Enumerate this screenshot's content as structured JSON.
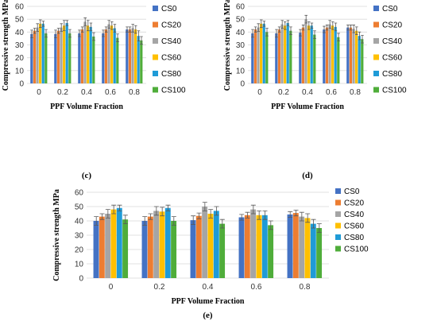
{
  "series_colors": [
    "#4472c4",
    "#ed7d31",
    "#a5a5a5",
    "#ffc000",
    "#1f9bd7",
    "#4fad3a"
  ],
  "chart_data": [
    {
      "type": "bar",
      "panel_label": "(c)",
      "categories": [
        "0",
        "0.2",
        "0.4",
        "0.6",
        "0.8"
      ],
      "xlabel": "PPF Volume Fraction",
      "ylabel": "Compressive strength MPa",
      "ylim": [
        0,
        60
      ],
      "yticks": [
        "0",
        "10",
        "20",
        "30",
        "40",
        "50",
        "60"
      ],
      "grid": true,
      "legend_position": "right",
      "series": [
        {
          "name": "CS0",
          "values": [
            38.5,
            38.5,
            39,
            39,
            42
          ],
          "errors": [
            3,
            3,
            2.5,
            2.5,
            2
          ]
        },
        {
          "name": "CS20",
          "values": [
            41,
            41,
            42,
            42,
            42
          ],
          "errors": [
            2,
            2,
            2,
            2,
            2
          ]
        },
        {
          "name": "CS40",
          "values": [
            43.5,
            43.5,
            48,
            46,
            43
          ],
          "errors": [
            3,
            3,
            3,
            3,
            3
          ]
        },
        {
          "name": "CS60",
          "values": [
            46.5,
            45,
            45,
            45,
            42
          ],
          "errors": [
            3,
            4,
            4,
            3,
            3
          ]
        },
        {
          "name": "CS80",
          "values": [
            46.5,
            47,
            44,
            43,
            37
          ],
          "errors": [
            2,
            2,
            3,
            3,
            4
          ]
        },
        {
          "name": "CS100",
          "values": [
            39,
            39,
            36.5,
            35.5,
            33.5
          ],
          "errors": [
            3,
            3,
            3,
            3,
            3
          ]
        }
      ]
    },
    {
      "type": "bar",
      "panel_label": "(d)",
      "categories": [
        "0",
        "0.2",
        "0.4",
        "0.6",
        "0.8"
      ],
      "xlabel": "PPF Volume Fraction",
      "ylabel": "Compressive strength MPa",
      "ylim": [
        0,
        60
      ],
      "yticks": [
        "0",
        "10",
        "20",
        "30",
        "40",
        "50",
        "60"
      ],
      "grid": true,
      "legend_position": "right",
      "series": [
        {
          "name": "CS0",
          "values": [
            39,
            39,
            39.5,
            42,
            43.5
          ],
          "errors": [
            3,
            3,
            2.5,
            2.5,
            2
          ]
        },
        {
          "name": "CS20",
          "values": [
            42,
            42,
            43.5,
            43.5,
            43.5
          ],
          "errors": [
            2,
            2,
            2,
            2,
            2
          ]
        },
        {
          "name": "CS40",
          "values": [
            43.5,
            46,
            50,
            46,
            42.5
          ],
          "errors": [
            3,
            3,
            3,
            3,
            3
          ]
        },
        {
          "name": "CS60",
          "values": [
            46.5,
            45,
            45,
            45,
            41
          ],
          "errors": [
            3,
            3,
            3,
            3,
            3
          ]
        },
        {
          "name": "CS80",
          "values": [
            46.5,
            47,
            45,
            44,
            37
          ],
          "errors": [
            2,
            2,
            2,
            3,
            3
          ]
        },
        {
          "name": "CS100",
          "values": [
            40,
            41,
            38,
            36,
            34.5
          ],
          "errors": [
            3,
            3,
            3,
            3,
            3
          ]
        }
      ]
    },
    {
      "type": "bar",
      "panel_label": "(e)",
      "categories": [
        "0",
        "0.2",
        "0.4",
        "0.6",
        "0.8"
      ],
      "xlabel": "PPF Volume Fraction",
      "ylabel": "Compressive strength MPa",
      "ylim": [
        0,
        60
      ],
      "yticks": [
        "0",
        "10",
        "20",
        "30",
        "40",
        "50",
        "60"
      ],
      "grid": true,
      "legend_position": "right",
      "series": [
        {
          "name": "CS0",
          "values": [
            40,
            40,
            40.5,
            42.5,
            44.5
          ],
          "errors": [
            3,
            3,
            3,
            2,
            2
          ]
        },
        {
          "name": "CS20",
          "values": [
            43,
            43,
            43.5,
            44,
            45.5
          ],
          "errors": [
            2,
            2,
            2,
            2,
            2
          ]
        },
        {
          "name": "CS40",
          "values": [
            45,
            47,
            50,
            48,
            43
          ],
          "errors": [
            3,
            3,
            3,
            3,
            3
          ]
        },
        {
          "name": "CS60",
          "values": [
            48,
            46.5,
            45,
            44,
            42
          ],
          "errors": [
            3,
            3,
            3,
            3,
            3
          ]
        },
        {
          "name": "CS80",
          "values": [
            49,
            49,
            47,
            44,
            38
          ],
          "errors": [
            2,
            2,
            3,
            3,
            3
          ]
        },
        {
          "name": "CS100",
          "values": [
            41,
            40,
            38,
            37,
            35
          ],
          "errors": [
            3,
            3,
            3,
            3,
            3
          ]
        }
      ]
    }
  ]
}
